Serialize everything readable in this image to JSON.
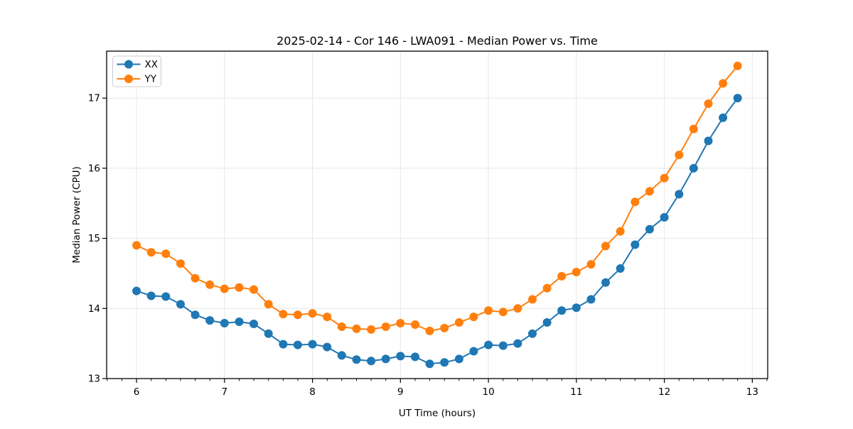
{
  "chart_data": {
    "type": "line",
    "title": "2025-02-14 - Cor 146 - LWA091 - Median Power vs. Time",
    "xlabel": "UT Time (hours)",
    "ylabel": "Median Power (CPU)",
    "xlim": [
      5.66,
      13.175
    ],
    "ylim": [
      13.0,
      17.67
    ],
    "xticks": [
      6,
      7,
      8,
      9,
      10,
      11,
      12,
      13
    ],
    "yticks": [
      13,
      14,
      15,
      16,
      17
    ],
    "x_minor_step": 0.166667,
    "grid": true,
    "legend_position": "upper-left",
    "background_color": "#ffffff",
    "grid_color": "#e6e6e6",
    "spine_color": "#000000",
    "x": [
      6.0,
      6.167,
      6.333,
      6.5,
      6.667,
      6.833,
      7.0,
      7.167,
      7.333,
      7.5,
      7.667,
      7.833,
      8.0,
      8.167,
      8.333,
      8.5,
      8.667,
      8.833,
      9.0,
      9.167,
      9.333,
      9.5,
      9.667,
      9.833,
      10.0,
      10.167,
      10.333,
      10.5,
      10.667,
      10.833,
      11.0,
      11.167,
      11.333,
      11.5,
      11.667,
      11.833,
      12.0,
      12.167,
      12.333,
      12.5,
      12.667,
      12.833
    ],
    "series": [
      {
        "name": "XX",
        "color": "#1f77b4",
        "values": [
          14.25,
          14.18,
          14.17,
          14.06,
          13.91,
          13.83,
          13.79,
          13.81,
          13.78,
          13.64,
          13.49,
          13.48,
          13.49,
          13.45,
          13.33,
          13.27,
          13.25,
          13.28,
          13.32,
          13.31,
          13.21,
          13.23,
          13.28,
          13.39,
          13.48,
          13.47,
          13.5,
          13.64,
          13.8,
          13.97,
          14.01,
          14.13,
          14.37,
          14.57,
          14.91,
          15.13,
          15.3,
          15.63,
          16.0,
          16.39,
          16.72,
          17.0
        ]
      },
      {
        "name": "YY",
        "color": "#ff7f0e",
        "values": [
          14.9,
          14.8,
          14.78,
          14.64,
          14.43,
          14.34,
          14.28,
          14.3,
          14.27,
          14.06,
          13.92,
          13.91,
          13.93,
          13.88,
          13.74,
          13.71,
          13.7,
          13.74,
          13.79,
          13.77,
          13.68,
          13.72,
          13.8,
          13.88,
          13.97,
          13.95,
          14.0,
          14.13,
          14.29,
          14.46,
          14.52,
          14.63,
          14.89,
          15.1,
          15.52,
          15.67,
          15.86,
          16.19,
          16.56,
          16.92,
          17.21,
          17.46
        ]
      }
    ]
  }
}
